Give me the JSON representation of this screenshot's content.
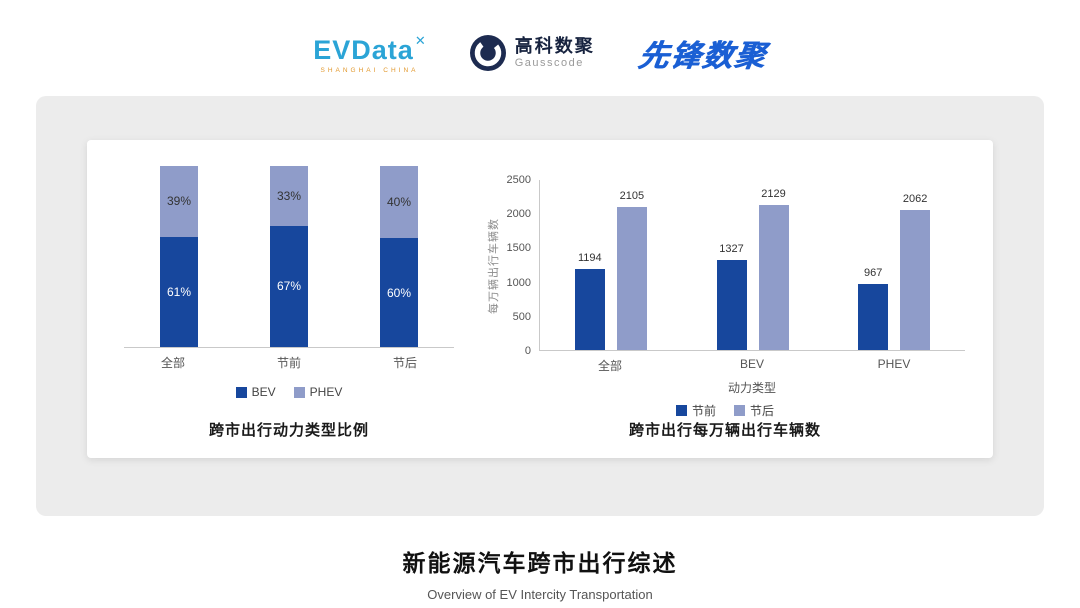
{
  "header": {
    "evdata": {
      "name": "EVData",
      "mark": "✕",
      "tagline": "SHANGHAI CHINA"
    },
    "gausscode": {
      "name_cn": "高科数聚",
      "name_en": "Gausscode"
    },
    "pioneer": {
      "name": "先锋数聚"
    }
  },
  "colors": {
    "series_dark_blue": "#17479d",
    "series_light_blue": "#8f9cc9",
    "evdata_blue": "#2ba4d6",
    "pioneer_blue": "#1a5fd4",
    "panel_gray": "#ececec"
  },
  "chart_data": [
    {
      "type": "bar",
      "subtype": "stacked-percent",
      "title": "跨市出行动力类型比例",
      "categories": [
        "全部",
        "节前",
        "节后"
      ],
      "series": [
        {
          "name": "BEV",
          "values": [
            61,
            67,
            60
          ],
          "unit": "%",
          "color": "#17479d"
        },
        {
          "name": "PHEV",
          "values": [
            39,
            33,
            40
          ],
          "unit": "%",
          "color": "#8f9cc9"
        }
      ],
      "ylim": [
        0,
        100
      ],
      "grid": false,
      "legend_position": "bottom"
    },
    {
      "type": "bar",
      "subtype": "grouped",
      "title": "跨市出行每万辆出行车辆数",
      "categories": [
        "全部",
        "BEV",
        "PHEV"
      ],
      "xlabel": "动力类型",
      "ylabel": "每万辆出行车辆数",
      "ylim": [
        0,
        2500
      ],
      "yticks": [
        0,
        500,
        1000,
        1500,
        2000,
        2500
      ],
      "series": [
        {
          "name": "节前",
          "values": [
            1194,
            1327,
            967
          ],
          "color": "#17479d"
        },
        {
          "name": "节后",
          "values": [
            2105,
            2129,
            2062
          ],
          "color": "#8f9cc9"
        }
      ],
      "grid": false,
      "legend_position": "bottom"
    }
  ],
  "footer": {
    "title": "新能源汽车跨市出行综述",
    "subtitle": "Overview of EV Intercity Transportation"
  }
}
